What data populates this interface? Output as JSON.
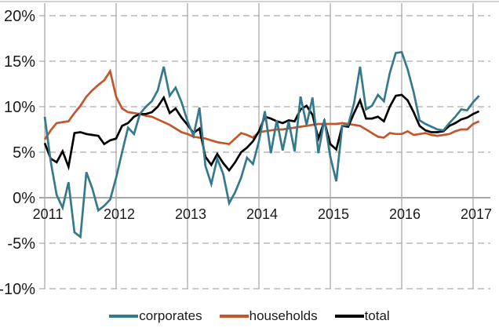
{
  "chart_data": {
    "type": "line",
    "title": "",
    "xlabel": "",
    "ylabel": "",
    "x_unit": "month",
    "x_range": [
      "2011-01",
      "2017-02"
    ],
    "x_tick_labels": [
      "2011",
      "2012",
      "2013",
      "2014",
      "2015",
      "2016",
      "2017"
    ],
    "y_tick_labels": [
      "20%",
      "15%",
      "10%",
      "5%",
      "0%",
      "-5%",
      "-10%"
    ],
    "y_tick_values": [
      20,
      15,
      10,
      5,
      0,
      -5,
      -10
    ],
    "ylim": [
      -10,
      20
    ],
    "grid": true,
    "legend_position": "bottom",
    "series": [
      {
        "name": "corporates",
        "color": "#35798C",
        "values": [
          8.9,
          4.0,
          0.3,
          -1.1,
          1.7,
          -3.8,
          -4.3,
          2.8,
          1.0,
          -1.4,
          -0.9,
          -0.2,
          2.2,
          5.0,
          7.7,
          7.0,
          9.2,
          10.0,
          10.6,
          11.8,
          14.4,
          11.2,
          12.1,
          10.5,
          8.4,
          6.8,
          9.9,
          3.5,
          1.5,
          4.3,
          2.6,
          -0.6,
          0.6,
          2.2,
          4.4,
          3.7,
          6.2,
          9.5,
          4.9,
          8.5,
          5.2,
          8.4,
          5.1,
          11.1,
          8.0,
          11.0,
          4.9,
          8.6,
          4.5,
          1.8,
          7.9,
          8.0,
          10.4,
          14.4,
          9.7,
          10.1,
          11.3,
          10.6,
          13.7,
          15.9,
          16.0,
          14.1,
          11.6,
          8.5,
          8.1,
          7.8,
          7.5,
          7.4,
          8.2,
          8.9,
          9.7,
          9.6,
          10.5,
          11.2
        ]
      },
      {
        "name": "households",
        "color": "#C4562A",
        "values": [
          6.4,
          7.4,
          8.2,
          8.3,
          8.4,
          9.3,
          10.1,
          11.1,
          11.8,
          12.4,
          12.9,
          13.9,
          11.1,
          9.8,
          9.4,
          9.3,
          9.2,
          9.0,
          8.9,
          8.6,
          8.3,
          8.0,
          7.6,
          7.2,
          7.0,
          6.7,
          6.6,
          6.5,
          6.3,
          6.1,
          6.0,
          5.9,
          6.5,
          7.1,
          6.9,
          6.6,
          7.2,
          7.3,
          7.4,
          7.5,
          7.5,
          7.6,
          7.7,
          7.8,
          7.9,
          8.0,
          8.1,
          8.1,
          8.1,
          8.1,
          8.2,
          8.1,
          8.0,
          7.9,
          7.5,
          7.1,
          6.7,
          6.6,
          7.1,
          7.0,
          7.0,
          7.3,
          6.9,
          7.0,
          7.1,
          6.9,
          6.8,
          6.9,
          7.0,
          7.3,
          7.5,
          7.5,
          8.1,
          8.4
        ]
      },
      {
        "name": "total",
        "color": "#000000",
        "values": [
          6.0,
          4.3,
          3.9,
          5.1,
          3.4,
          7.1,
          7.2,
          7.0,
          6.9,
          6.8,
          5.9,
          6.3,
          6.5,
          7.9,
          8.2,
          8.9,
          9.2,
          9.2,
          9.4,
          10.0,
          11.0,
          9.3,
          9.8,
          8.8,
          8.0,
          7.1,
          7.6,
          4.5,
          3.6,
          4.8,
          3.8,
          3.0,
          3.9,
          5.0,
          5.5,
          6.2,
          7.3,
          8.9,
          8.7,
          8.4,
          8.2,
          8.5,
          8.4,
          9.7,
          10.1,
          9.1,
          6.5,
          8.4,
          5.9,
          5.3,
          7.9,
          7.8,
          9.3,
          10.7,
          8.7,
          8.7,
          8.9,
          8.4,
          10.0,
          11.2,
          11.3,
          10.7,
          9.4,
          7.9,
          7.4,
          7.2,
          7.2,
          7.3,
          7.9,
          8.2,
          8.6,
          8.8,
          9.2,
          9.5
        ]
      }
    ]
  },
  "style_colors": {
    "grid": "#ABABAB",
    "zero_axis": "#8A8A8A",
    "top_border": "#C6C6C6",
    "label": "#1A1A1A",
    "background": "#FFFFFF"
  }
}
